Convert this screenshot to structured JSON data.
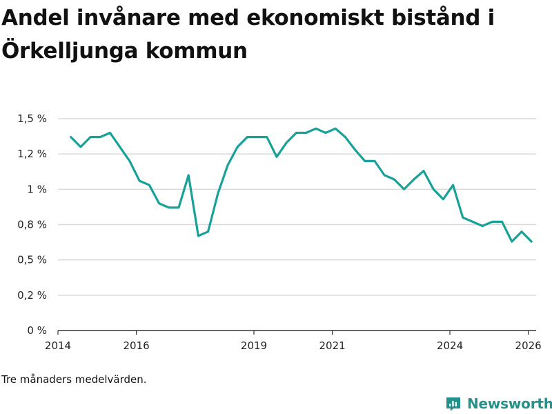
{
  "title": "Andel invånare med ekonomiskt bistånd i Örkelljunga kommun",
  "note": "Tre månaders medelvärden.",
  "brand": {
    "name": "Newsworthy",
    "icon": "newsworthy-logo-icon",
    "color": "#25918a"
  },
  "chart_data": {
    "type": "line",
    "title": "Andel invånare med ekonomiskt bistånd i Örkelljunga kommun",
    "xlabel": "",
    "ylabel": "",
    "ylim": [
      0,
      1.5
    ],
    "xlim": [
      2014.0,
      2026.2
    ],
    "grid": true,
    "line_color": "#17a199",
    "y_ticks": [
      {
        "value": 0,
        "label": "0 %"
      },
      {
        "value": 0.25,
        "label": "0,2 %"
      },
      {
        "value": 0.5,
        "label": "0,5 %"
      },
      {
        "value": 0.75,
        "label": "0,8 %"
      },
      {
        "value": 1.0,
        "label": "1 %"
      },
      {
        "value": 1.25,
        "label": "1,2 %"
      },
      {
        "value": 1.5,
        "label": "1,5 %"
      }
    ],
    "x_ticks": [
      {
        "value": 2014,
        "label": "2014"
      },
      {
        "value": 2016,
        "label": "2016"
      },
      {
        "value": 2019,
        "label": "2019"
      },
      {
        "value": 2021,
        "label": "2021"
      },
      {
        "value": 2024,
        "label": "2024"
      },
      {
        "value": 2026,
        "label": "2026"
      }
    ],
    "series": [
      {
        "name": "Andel invånare med ekonomiskt bistånd",
        "x": [
          2014.33,
          2014.58,
          2014.83,
          2015.08,
          2015.33,
          2015.58,
          2015.83,
          2016.08,
          2016.33,
          2016.58,
          2016.83,
          2017.08,
          2017.33,
          2017.58,
          2017.83,
          2018.08,
          2018.33,
          2018.58,
          2018.83,
          2019.08,
          2019.33,
          2019.58,
          2019.83,
          2020.08,
          2020.33,
          2020.58,
          2020.83,
          2021.08,
          2021.33,
          2021.58,
          2021.83,
          2022.08,
          2022.33,
          2022.58,
          2022.83,
          2023.08,
          2023.33,
          2023.58,
          2023.83,
          2024.08,
          2024.33,
          2024.58,
          2024.83,
          2025.08,
          2025.33,
          2025.58,
          2025.83,
          2026.08
        ],
        "values": [
          1.37,
          1.3,
          1.37,
          1.37,
          1.4,
          1.3,
          1.2,
          1.06,
          1.03,
          0.9,
          0.87,
          0.87,
          1.1,
          0.67,
          0.7,
          0.97,
          1.17,
          1.3,
          1.37,
          1.37,
          1.37,
          1.23,
          1.33,
          1.4,
          1.4,
          1.43,
          1.4,
          1.43,
          1.37,
          1.28,
          1.2,
          1.2,
          1.1,
          1.07,
          1.0,
          1.07,
          1.13,
          1.0,
          0.93,
          1.03,
          0.8,
          0.77,
          0.74,
          0.77,
          0.77,
          0.63,
          0.7,
          0.63
        ]
      }
    ]
  }
}
